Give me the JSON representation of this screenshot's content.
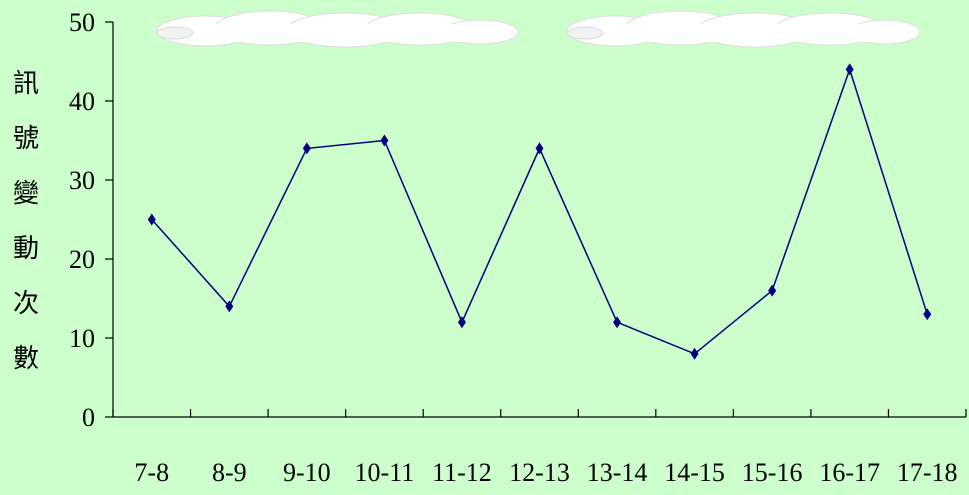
{
  "chart_data": {
    "type": "line",
    "title": "",
    "xlabel": "",
    "ylabel": "訊號變動次數",
    "categories": [
      "7-8",
      "8-9",
      "9-10",
      "10-11",
      "11-12",
      "12-13",
      "13-14",
      "14-15",
      "15-16",
      "16-17",
      "17-18"
    ],
    "series": [
      {
        "values": [
          25,
          14,
          34,
          35,
          12,
          34,
          12,
          8,
          16,
          44,
          13
        ]
      }
    ],
    "yticks": [
      0,
      10,
      20,
      30,
      40,
      50
    ],
    "ylim": [
      0,
      50
    ],
    "grid": false,
    "legend": "none",
    "colors": {
      "line": "#000080",
      "marker": "#000080",
      "background": "#ccffcc",
      "axis": "#000000",
      "cloud": "#ffffff"
    }
  }
}
